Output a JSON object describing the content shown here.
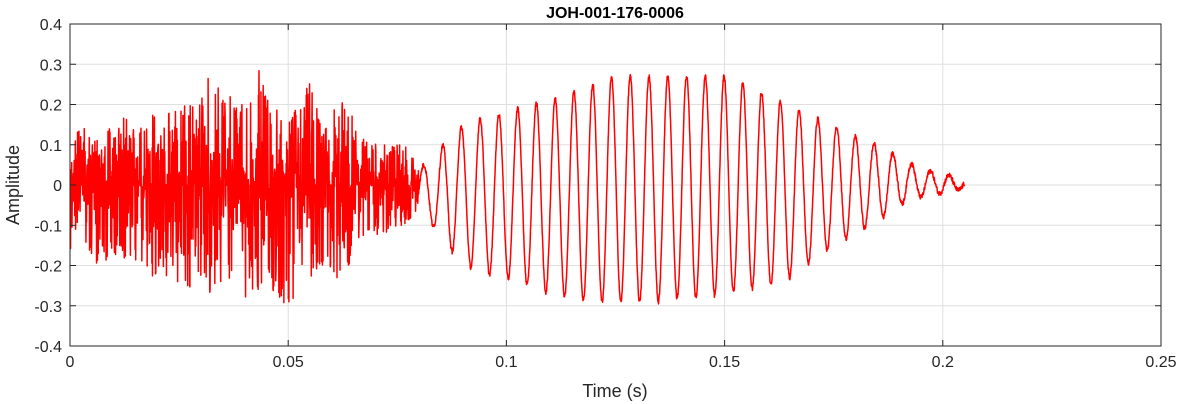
{
  "chart_data": {
    "type": "line",
    "title": "JOH-001-176-0006",
    "xlabel": "Time (s)",
    "ylabel": "Amplitude",
    "xlim": [
      0,
      0.25
    ],
    "ylim": [
      -0.4,
      0.4
    ],
    "x_ticks": [
      0,
      0.05,
      0.1,
      0.15,
      0.2,
      0.25
    ],
    "x_tick_labels": [
      "0",
      "0.05",
      "0.1",
      "0.15",
      "0.2",
      "0.25"
    ],
    "y_ticks": [
      -0.4,
      -0.3,
      -0.2,
      -0.1,
      0,
      0.1,
      0.2,
      0.3,
      0.4
    ],
    "y_tick_labels": [
      "-0.4",
      "-0.3",
      "-0.2",
      "-0.1",
      "0",
      "0.1",
      "0.2",
      "0.3",
      "0.4"
    ],
    "grid": true,
    "line_color": "#ff0000",
    "series": [
      {
        "x": [
          0,
          0.002,
          0.005,
          0.008,
          0.012,
          0.016,
          0.02,
          0.025,
          0.03,
          0.032,
          0.035,
          0.04,
          0.043,
          0.045,
          0.05,
          0.055,
          0.058,
          0.062,
          0.067,
          0.072,
          0.077,
          0.08,
          0.083,
          0.087,
          0.091,
          0.095,
          0.1,
          0.105,
          0.11,
          0.115,
          0.12,
          0.125,
          0.13,
          0.135,
          0.14,
          0.145,
          0.15,
          0.155,
          0.16,
          0.165,
          0.17,
          0.175,
          0.18,
          0.185,
          0.19,
          0.195,
          0.2,
          0.205
        ],
        "envelope_max": [
          0.05,
          0.17,
          0.12,
          0.13,
          0.2,
          0.17,
          0.19,
          0.2,
          0.21,
          0.3,
          0.23,
          0.2,
          0.3,
          0.22,
          0.15,
          0.27,
          0.13,
          0.23,
          0.12,
          0.1,
          0.1,
          0.05,
          0.05,
          0.13,
          0.15,
          0.17,
          0.18,
          0.2,
          0.21,
          0.23,
          0.25,
          0.27,
          0.27,
          0.27,
          0.27,
          0.27,
          0.27,
          0.25,
          0.22,
          0.2,
          0.17,
          0.15,
          0.12,
          0.1,
          0.07,
          0.04,
          0.03,
          0.01
        ],
        "envelope_min": [
          -0.2,
          -0.08,
          -0.2,
          -0.19,
          -0.18,
          -0.22,
          -0.23,
          -0.26,
          -0.25,
          -0.27,
          -0.24,
          -0.28,
          -0.27,
          -0.27,
          -0.3,
          -0.24,
          -0.2,
          -0.24,
          -0.14,
          -0.12,
          -0.1,
          -0.06,
          -0.1,
          -0.16,
          -0.2,
          -0.22,
          -0.23,
          -0.25,
          -0.27,
          -0.28,
          -0.29,
          -0.29,
          -0.29,
          -0.29,
          -0.28,
          -0.28,
          -0.27,
          -0.26,
          -0.25,
          -0.23,
          -0.19,
          -0.15,
          -0.12,
          -0.09,
          -0.05,
          -0.03,
          -0.02,
          -0.01
        ],
        "segments": [
          {
            "x_range": [
              0,
              0.08
            ],
            "character": "broadband noise"
          },
          {
            "x_range": [
              0.08,
              0.205
            ],
            "character": "periodic oscillation, period approx. 0.0043 s"
          }
        ]
      }
    ]
  }
}
